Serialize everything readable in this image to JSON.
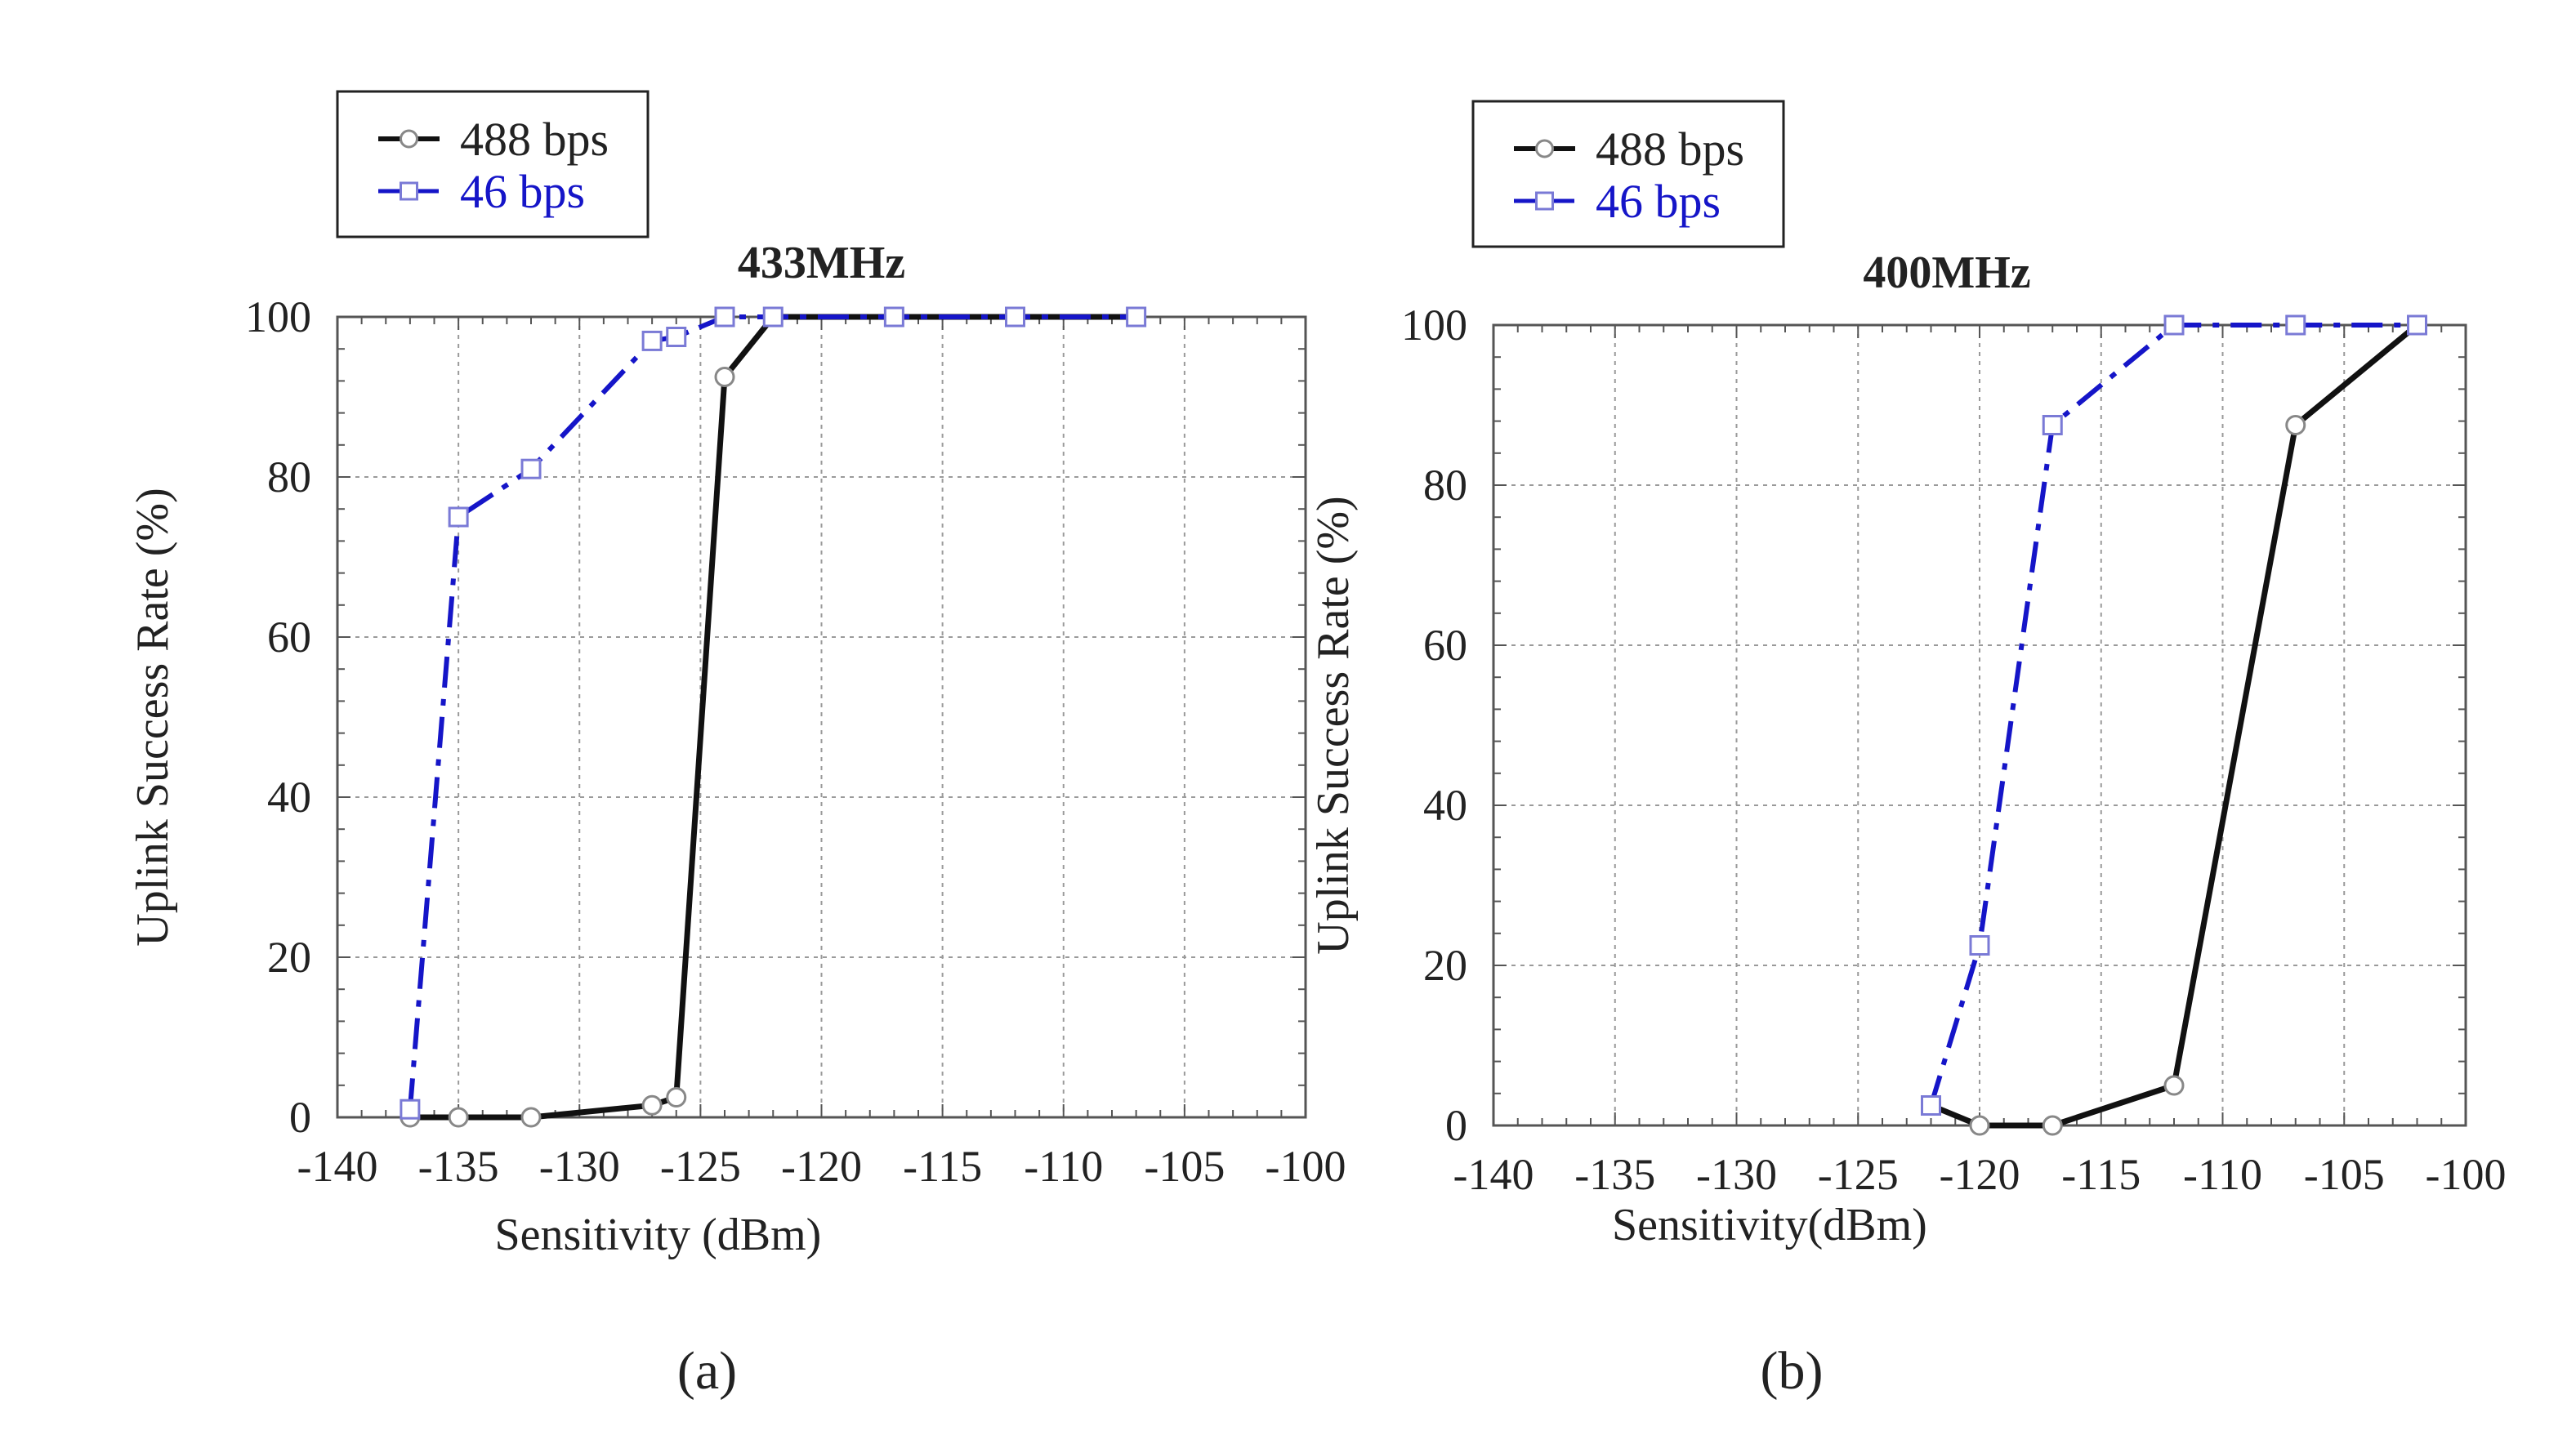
{
  "colors": {
    "series_488": "#111111",
    "series_46": "#1515c8",
    "marker_488": "#888888",
    "marker_46": "#7a7ad6"
  },
  "chart_data": [
    {
      "type": "line",
      "panel_label": "(a)",
      "title": "433MHz",
      "xlabel": "Sensitivity (dBm)",
      "ylabel": "Uplink Success Rate (%)",
      "xlim": [
        -140,
        -100
      ],
      "ylim": [
        0,
        100
      ],
      "xticks": [
        -140,
        -135,
        -130,
        -125,
        -120,
        -115,
        -110,
        -105,
        -100
      ],
      "yticks": [
        0,
        20,
        40,
        60,
        80,
        100
      ],
      "grid": true,
      "legend_position": "top-left, above plot",
      "series": [
        {
          "name": "488 bps",
          "style": "solid",
          "marker": "circle",
          "x": [
            -137,
            -135,
            -132,
            -127,
            -126,
            -124,
            -122,
            -117,
            -112,
            -107
          ],
          "y": [
            0,
            0,
            0,
            1.5,
            2.5,
            92.5,
            100,
            100,
            100,
            100
          ]
        },
        {
          "name": "46 bps",
          "style": "dash-dot",
          "marker": "square",
          "x": [
            -137,
            -135,
            -132,
            -127,
            -126,
            -124,
            -122,
            -117,
            -112,
            -107
          ],
          "y": [
            1,
            75,
            81,
            97,
            97.5,
            100,
            100,
            100,
            100,
            100
          ]
        }
      ]
    },
    {
      "type": "line",
      "panel_label": "(b)",
      "title": "400MHz",
      "xlabel": "Sensitivity(dBm)",
      "ylabel": "Uplink Success Rate (%)",
      "xlim": [
        -140,
        -100
      ],
      "ylim": [
        0,
        100
      ],
      "xticks": [
        -140,
        -135,
        -130,
        -125,
        -120,
        -115,
        -110,
        -105,
        -100
      ],
      "yticks": [
        0,
        20,
        40,
        60,
        80,
        100
      ],
      "grid": true,
      "legend_position": "top-left, above plot",
      "series": [
        {
          "name": "488 bps",
          "style": "solid",
          "marker": "circle",
          "x": [
            -122,
            -120,
            -117,
            -112,
            -107,
            -102
          ],
          "y": [
            2.5,
            0,
            0,
            5,
            87.5,
            100
          ]
        },
        {
          "name": "46 bps",
          "style": "dash-dot",
          "marker": "square",
          "x": [
            -122,
            -120,
            -117,
            -112,
            -107,
            -102
          ],
          "y": [
            2.5,
            22.5,
            87.5,
            100,
            100,
            100
          ]
        }
      ]
    }
  ]
}
